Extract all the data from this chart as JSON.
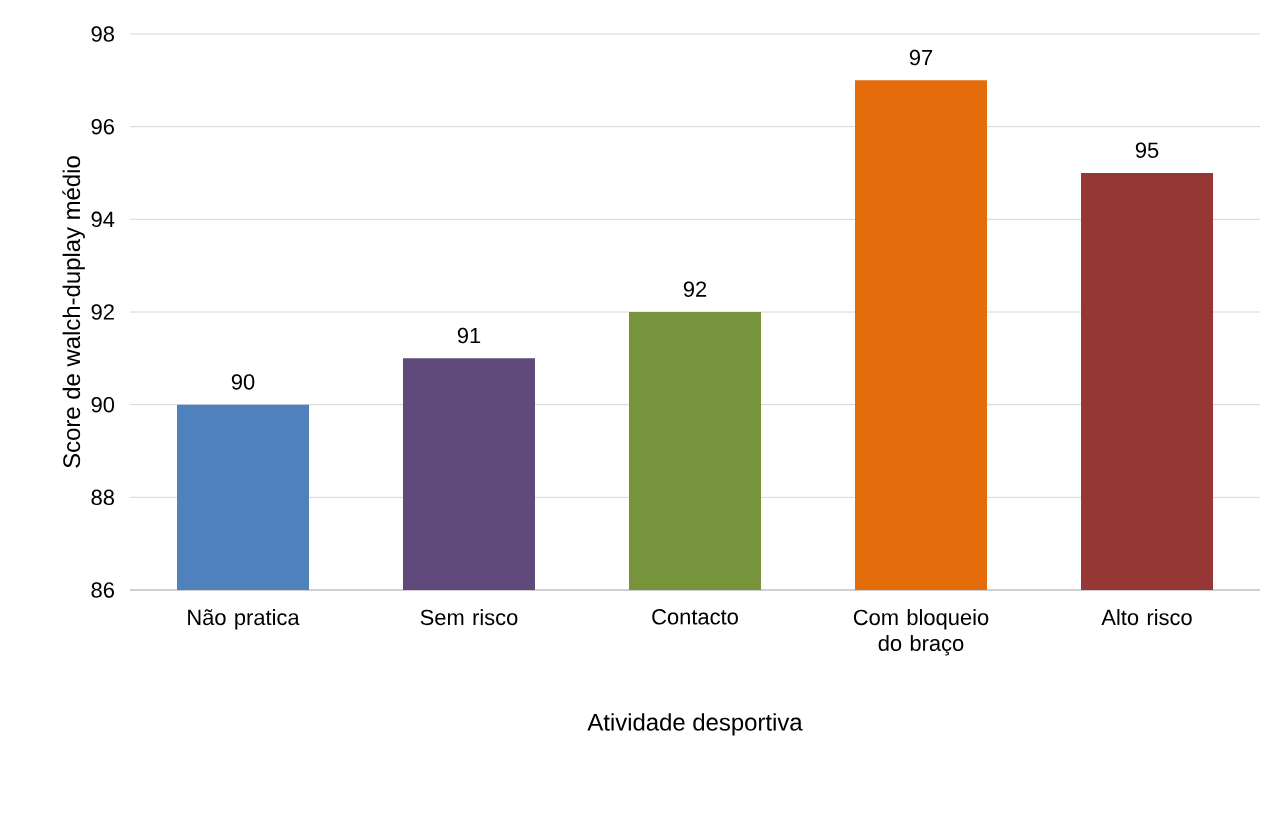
{
  "chart_data": {
    "type": "bar",
    "xlabel": "Atividade desportiva",
    "ylabel": "Score de walch-duplay médio",
    "categories": [
      "Não pratica",
      "Sem risco",
      "Contacto",
      "Com bloqueio do braço",
      "Alto risco"
    ],
    "values": [
      90,
      91,
      92,
      97,
      95
    ],
    "colors": [
      "#4f81bd",
      "#604a7b",
      "#77933c",
      "#e46c0a",
      "#953735"
    ],
    "ylim": [
      86,
      98
    ],
    "yticks": [
      86,
      88,
      90,
      92,
      94,
      96,
      98
    ],
    "grid": "y",
    "data_labels": true
  }
}
